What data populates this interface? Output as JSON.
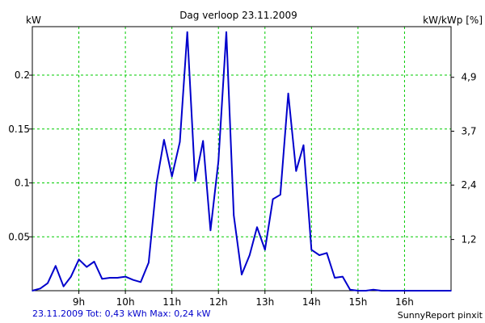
{
  "chart_data": {
    "type": "line",
    "title": "Dag  verloop 23.11.2009",
    "ylabel_left": "kW",
    "ylabel_right": "kW/kWp [%]",
    "footer_left": "23.11.2009 Tot: 0,43 kWh Max: 0,24 kW",
    "footer_right": "SunnyReport pinxit",
    "xlim": [
      8.0,
      17.0
    ],
    "ylim": [
      0,
      0.245
    ],
    "grid": true,
    "x_ticks": [
      {
        "value": 9,
        "label": "9h"
      },
      {
        "value": 10,
        "label": "10h"
      },
      {
        "value": 11,
        "label": "11h"
      },
      {
        "value": 12,
        "label": "12h"
      },
      {
        "value": 13,
        "label": "13h"
      },
      {
        "value": 14,
        "label": "14h"
      },
      {
        "value": 15,
        "label": "15h"
      },
      {
        "value": 16,
        "label": "16h"
      }
    ],
    "y_ticks_left": [
      {
        "value": 0.05,
        "label": "0.05"
      },
      {
        "value": 0.1,
        "label": "0.1"
      },
      {
        "value": 0.15,
        "label": "0.15"
      },
      {
        "value": 0.2,
        "label": "0.2"
      }
    ],
    "y_ticks_right": [
      {
        "value": 0.0475,
        "label": "1,2"
      },
      {
        "value": 0.098,
        "label": "2,4"
      },
      {
        "value": 0.148,
        "label": "3,7"
      },
      {
        "value": 0.198,
        "label": "4,9"
      }
    ],
    "colors": {
      "line": "#0000cc",
      "grid": "#00cc00",
      "axis": "#000000",
      "footer_left": "#0000cc"
    },
    "series": [
      {
        "x": [
          8.0,
          8.17,
          8.33,
          8.5,
          8.67,
          8.83,
          9.0,
          9.17,
          9.33,
          9.5,
          9.67,
          9.83,
          10.0,
          10.17,
          10.33,
          10.5,
          10.67,
          10.83,
          11.0,
          11.17,
          11.33,
          11.5,
          11.67,
          11.83,
          12.0,
          12.17,
          12.33,
          12.5,
          12.67,
          12.83,
          13.0,
          13.17,
          13.33,
          13.5,
          13.67,
          13.83,
          14.0,
          14.17,
          14.33,
          14.5,
          14.67,
          14.83,
          15.0,
          15.17,
          15.33,
          15.5,
          15.67,
          15.83,
          16.0,
          16.17,
          16.33,
          16.5,
          16.67,
          16.83,
          17.0
        ],
        "values": [
          0.0,
          0.002,
          0.007,
          0.023,
          0.004,
          0.013,
          0.029,
          0.022,
          0.027,
          0.011,
          0.012,
          0.012,
          0.013,
          0.01,
          0.008,
          0.026,
          0.1,
          0.14,
          0.106,
          0.138,
          0.24,
          0.102,
          0.139,
          0.056,
          0.12,
          0.24,
          0.07,
          0.015,
          0.033,
          0.059,
          0.038,
          0.085,
          0.089,
          0.183,
          0.111,
          0.135,
          0.038,
          0.033,
          0.035,
          0.012,
          0.013,
          0.001,
          0.0,
          0.0,
          0.001,
          0.0,
          0.0,
          0.0,
          0.0,
          0.0,
          0.0,
          0.0,
          0.0,
          0.0,
          0.0
        ]
      }
    ]
  }
}
